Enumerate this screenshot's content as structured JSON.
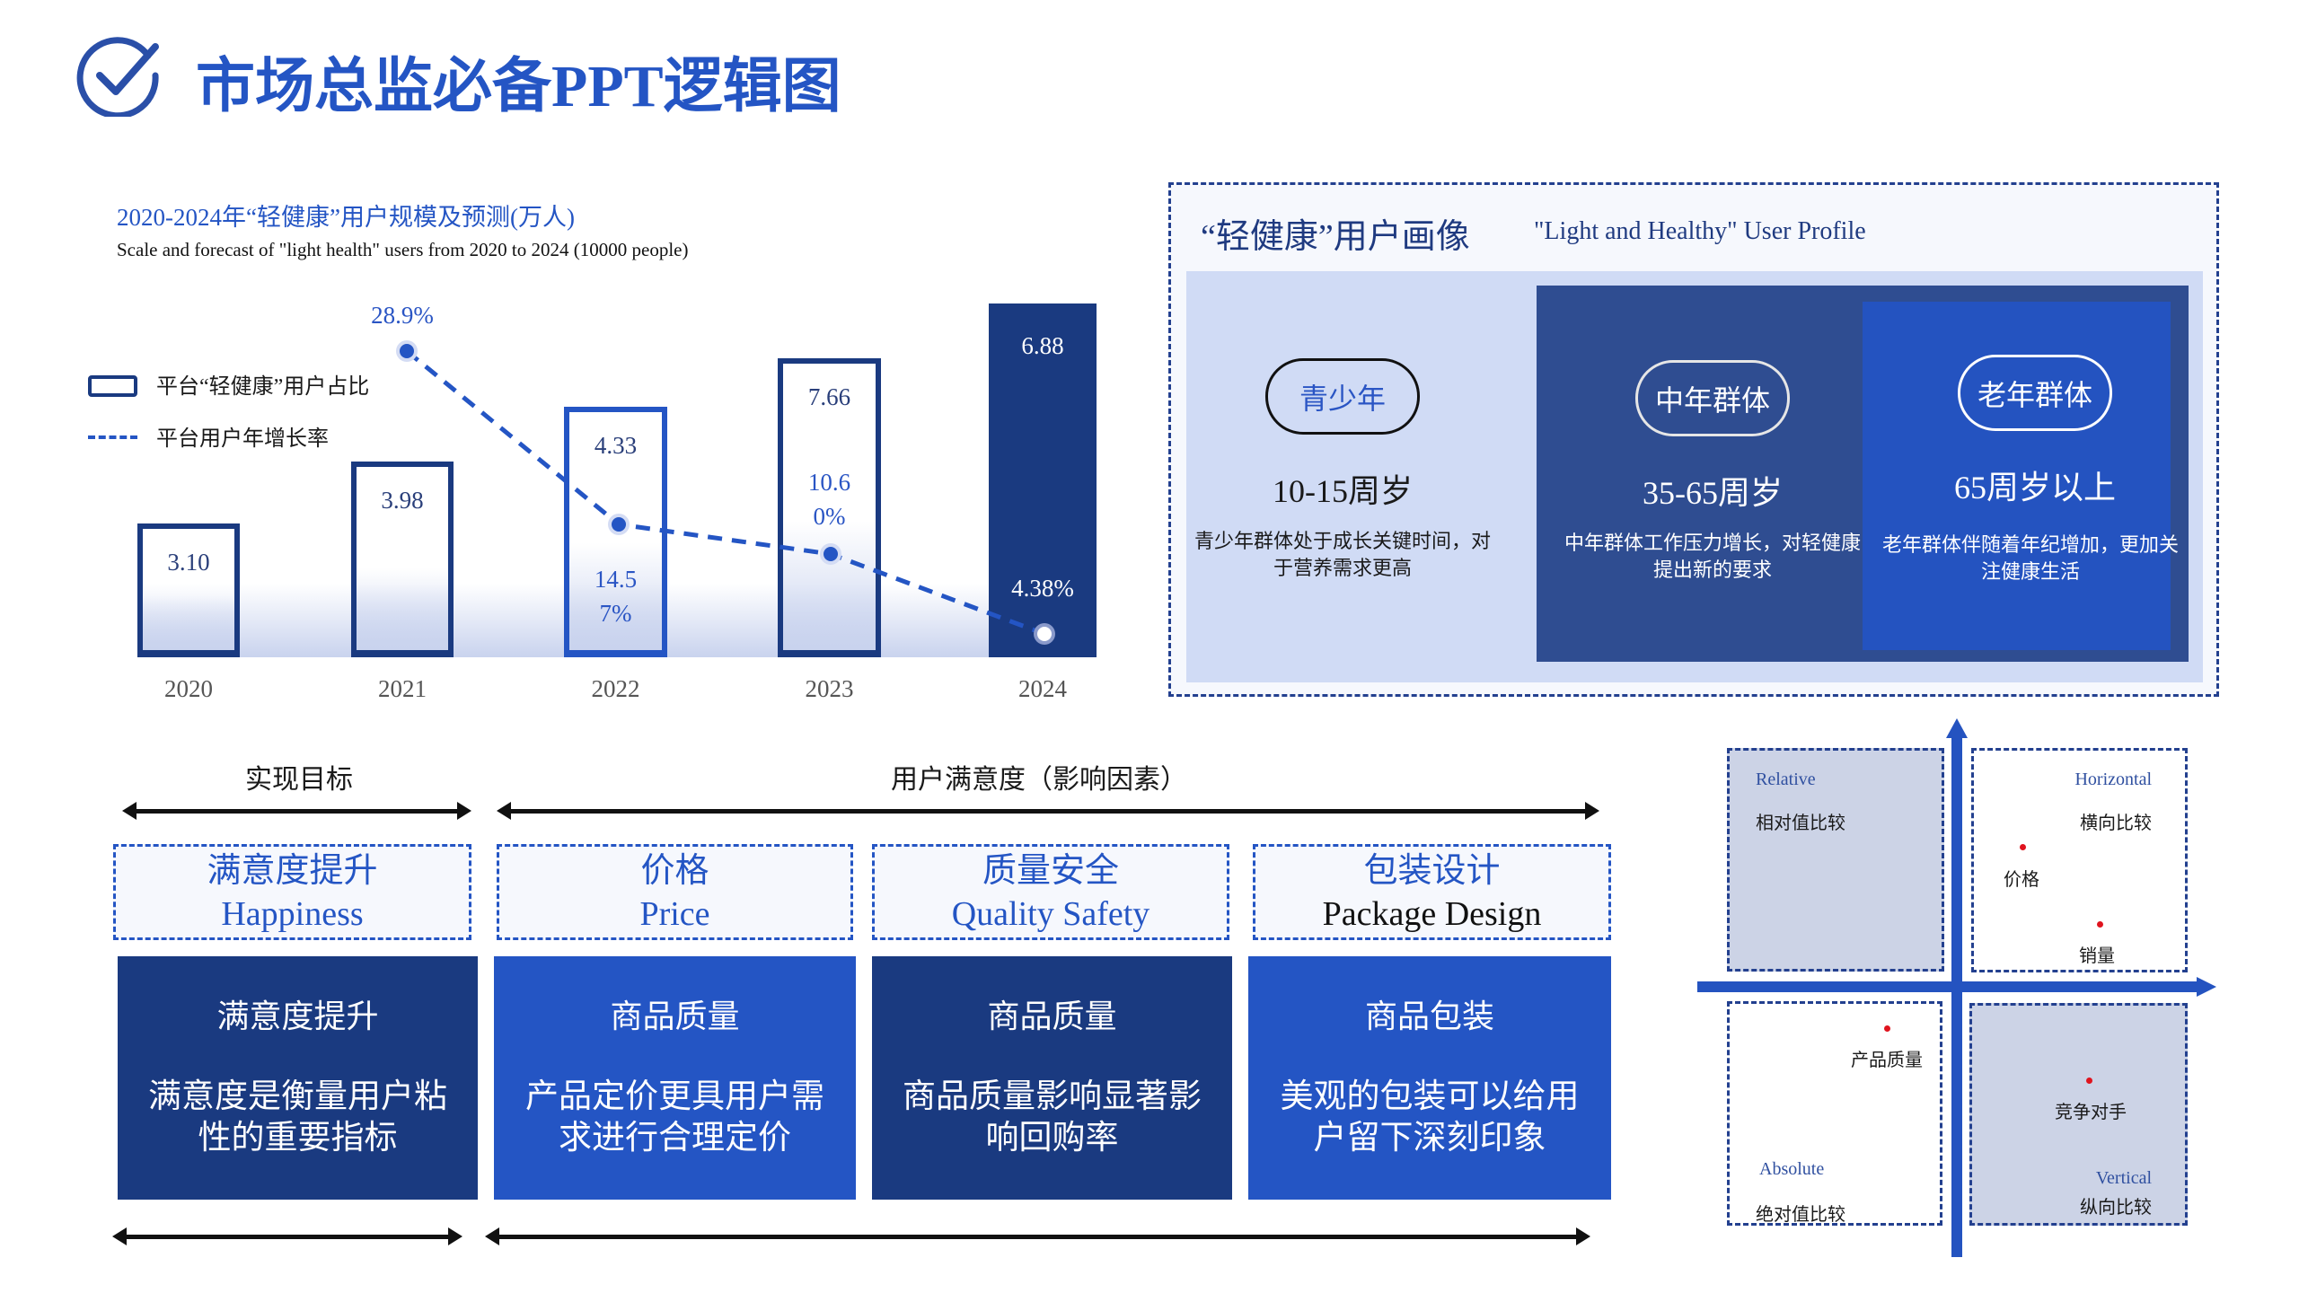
{
  "header": {
    "title": "市场总监必备PPT逻辑图",
    "icon": "check-circle-icon",
    "accent": "#2455c4"
  },
  "chart_data": {
    "type": "bar",
    "title": "2020-2024年“轻健康”用户规模及预测(万人)",
    "subtitle": "Scale and forecast of \"light health\" users from 2020 to 2024 (10000 people)",
    "categories": [
      "2020",
      "2021",
      "2022",
      "2023",
      "2024"
    ],
    "series": [
      {
        "name": "平台“轻健康”用户占比",
        "type": "bar",
        "values": [
          3.1,
          3.98,
          4.33,
          7.66,
          6.88
        ],
        "labels": [
          "3.10",
          "3.98",
          "4.33",
          "7.66",
          "6.88"
        ]
      },
      {
        "name": "平台用户年增长率",
        "type": "line",
        "values": [
          28.9,
          14.57,
          10.6,
          4.38
        ],
        "x": [
          "2021",
          "2022",
          "2023",
          "2024"
        ],
        "labels": [
          "28.9%",
          "14.57%",
          "10.60%",
          "4.38%"
        ]
      }
    ],
    "legend": "left",
    "colors": {
      "bar": "#1a3a80",
      "line": "#2455c4"
    }
  },
  "profile": {
    "title": "“轻健康”用户画像",
    "title_en": "\"Light and Healthy\" User Profile",
    "groups": [
      {
        "name": "青少年",
        "age": "10-15周岁",
        "desc": "青少年群体处于成长关键时间，对于营养需求更高"
      },
      {
        "name": "中年群体",
        "age": "35-65周岁",
        "desc": "中年群体工作压力增长，对轻健康提出新的要求"
      },
      {
        "name": "老年群体",
        "age": "65周岁以上",
        "desc": "老年群体伴随着年纪增加，更加关注健康生活"
      }
    ]
  },
  "factors": {
    "goal_label": "实现目标",
    "satisfaction_label": "用户满意度（影响因素）",
    "items": [
      {
        "cn": "满意度提升",
        "en": "Happiness",
        "title": "满意度提升",
        "desc": "满意度是衡量用户粘性的重要指标"
      },
      {
        "cn": "价格",
        "en": "Price",
        "title": "商品质量",
        "desc": "产品定价更具用户需求进行合理定价"
      },
      {
        "cn": "质量安全",
        "en": "Quality  Safety",
        "title": "商品质量",
        "desc": "商品质量影响显著影响回购率"
      },
      {
        "cn": "包装设计",
        "en": "Package Design",
        "title": "商品包装",
        "desc": "美观的包装可以给用户留下深刻印象"
      }
    ]
  },
  "quadrant": {
    "tl": {
      "en": "Relative",
      "cn": "相对值比较"
    },
    "tr": {
      "en": "Horizontal",
      "cn": "横向比较"
    },
    "bl": {
      "en": "Absolute",
      "cn": "绝对值比较"
    },
    "br": {
      "en": "Vertical",
      "cn": "纵向比较"
    },
    "points": [
      "价格",
      "销量",
      "产品质量",
      "竞争对手"
    ]
  }
}
